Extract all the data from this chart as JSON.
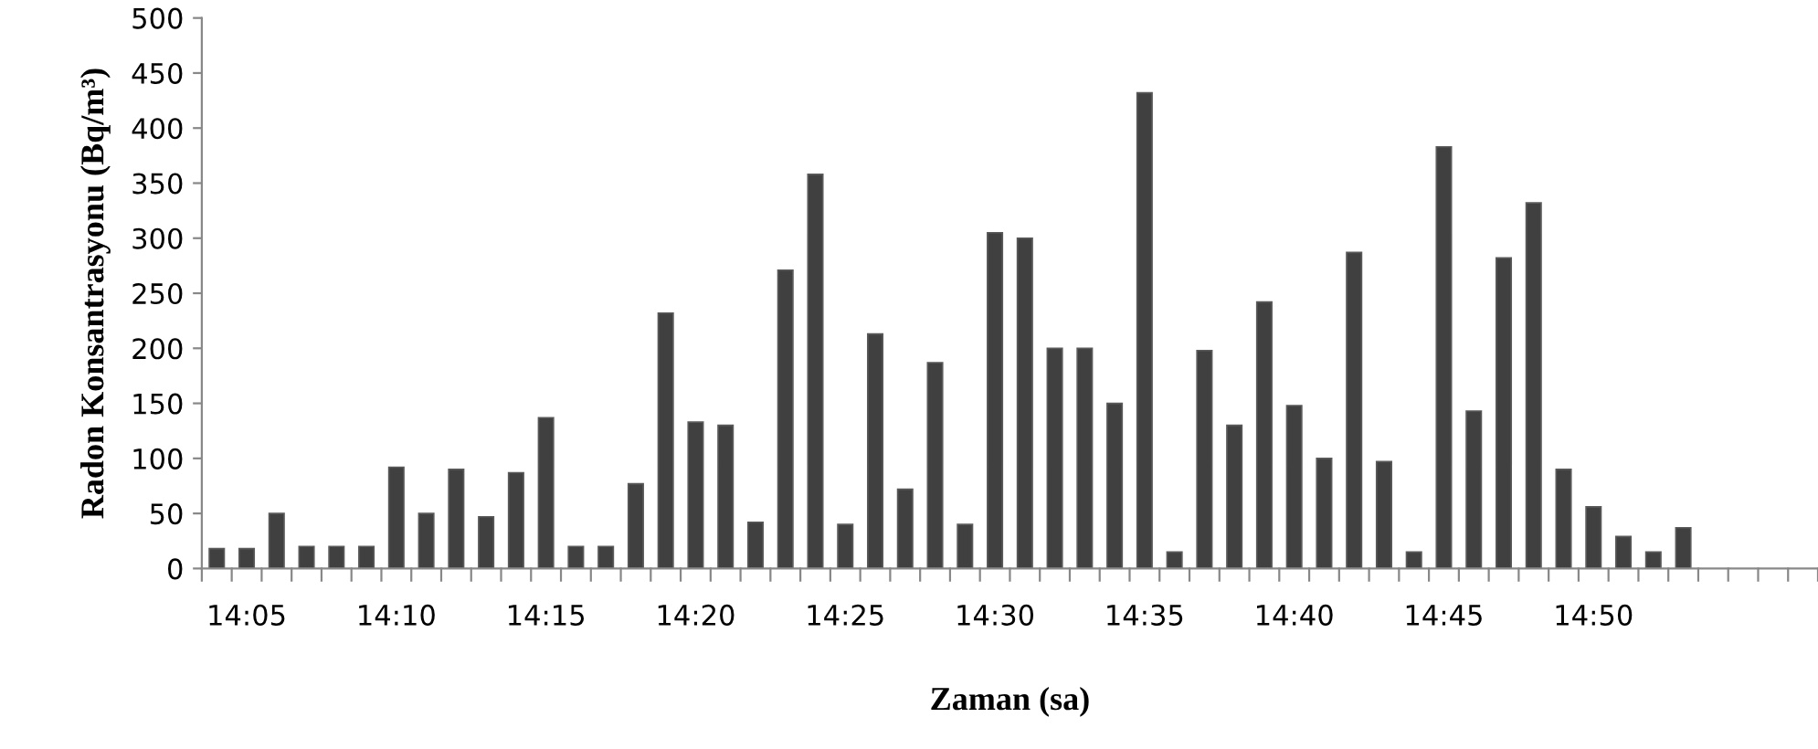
{
  "chart_data": {
    "type": "bar",
    "xlabel": "Zaman (sa)",
    "ylabel": "Radon Konsantrasyonu (Bq/m³)",
    "categories": [
      null,
      "14:05",
      null,
      null,
      null,
      null,
      "14:10",
      null,
      null,
      null,
      null,
      "14:15",
      null,
      null,
      null,
      null,
      "14:20",
      null,
      null,
      null,
      null,
      "14:25",
      null,
      null,
      null,
      null,
      "14:30",
      null,
      null,
      null,
      null,
      "14:35",
      null,
      null,
      null,
      null,
      "14:40",
      null,
      null,
      null,
      null,
      "14:45",
      null,
      null,
      null,
      null,
      "14:50",
      null,
      null,
      null,
      null,
      null,
      null,
      null
    ],
    "values": [
      18,
      18,
      50,
      20,
      20,
      20,
      92,
      50,
      90,
      47,
      87,
      137,
      20,
      20,
      77,
      232,
      133,
      130,
      42,
      271,
      358,
      40,
      213,
      72,
      187,
      40,
      305,
      300,
      200,
      200,
      150,
      432,
      15,
      198,
      130,
      242,
      148,
      100,
      287,
      97,
      15,
      383,
      143,
      282,
      332,
      90,
      56,
      29,
      15,
      37,
      null,
      null,
      null,
      null
    ],
    "color": "#404040",
    "ylim": [
      0,
      500
    ],
    "yticks": [
      0,
      50,
      100,
      150,
      200,
      250,
      300,
      350,
      400,
      450,
      500
    ],
    "grid": false,
    "legend": false
  }
}
